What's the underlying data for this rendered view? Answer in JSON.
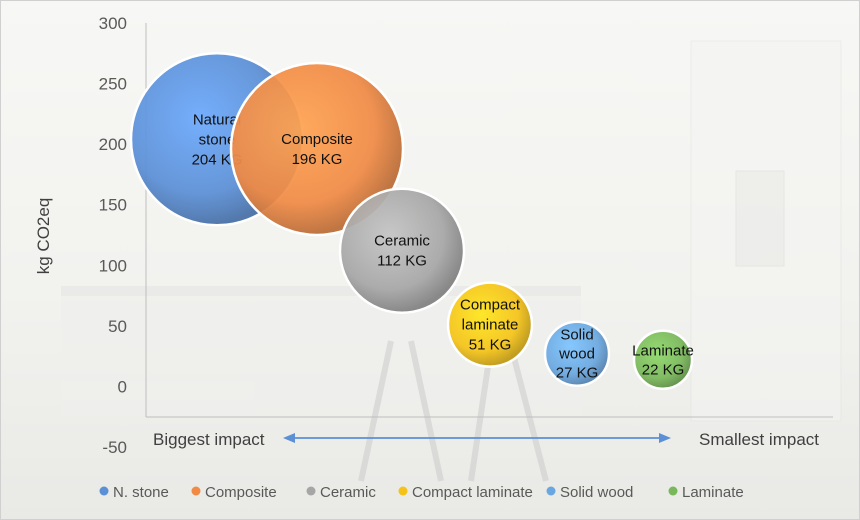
{
  "chart_data": {
    "type": "bubble",
    "ylabel": "kg CO2eq",
    "ylim": [
      -50,
      300
    ],
    "yticks": [
      "300",
      "250",
      "200",
      "150",
      "100",
      "50",
      "0",
      "-50"
    ],
    "grid": false,
    "legend_position": "bottom",
    "annotations": {
      "left": "Biggest impact",
      "right": "Smallest impact",
      "arrow": "double-headed, horizontal"
    },
    "series": [
      {
        "legend": "N. stone",
        "label_lines": [
          "Natural",
          "stone",
          "204 KG"
        ],
        "y": 204,
        "value_kg": 204,
        "color": "#5b8fd6"
      },
      {
        "legend": "Composite",
        "label_lines": [
          "Composite",
          "196 KG"
        ],
        "y": 196,
        "value_kg": 196,
        "color": "#f08a45"
      },
      {
        "legend": "Ceramic",
        "label_lines": [
          "Ceramic",
          "112 KG"
        ],
        "y": 112,
        "value_kg": 112,
        "color": "#a6a6a6"
      },
      {
        "legend": "Compact laminate",
        "label_lines": [
          "Compact",
          "laminate",
          "51 KG"
        ],
        "y": 51,
        "value_kg": 51,
        "color": "#f5c318"
      },
      {
        "legend": "Solid wood",
        "label_lines": [
          "Solid",
          "wood",
          "27 KG"
        ],
        "y": 27,
        "value_kg": 27,
        "color": "#6aa7e0"
      },
      {
        "legend": "Laminate",
        "label_lines": [
          "Laminate",
          "22 KG"
        ],
        "y": 22,
        "value_kg": 22,
        "color": "#79b85a"
      }
    ]
  }
}
